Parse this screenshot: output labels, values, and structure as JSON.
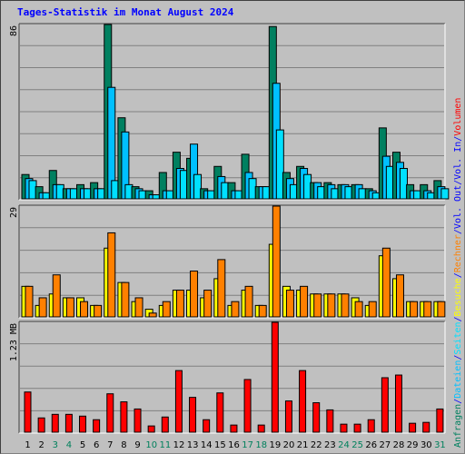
{
  "title": "Tages-Statistik im Monat August 2024",
  "colors": {
    "hits": "#008060",
    "files": "#00c0ff",
    "pages": "#00e0ff",
    "visits": "#ffff00",
    "sites": "#ff8000",
    "kbytes": "#ff0000",
    "weekend": "#00805c",
    "weekday": "#000000"
  },
  "chart_data": [
    {
      "type": "bar",
      "panel": "hits",
      "ymax_label": "86",
      "ylim": [
        0,
        86
      ],
      "categories": [
        "1",
        "2",
        "3",
        "4",
        "5",
        "6",
        "7",
        "8",
        "9",
        "10",
        "11",
        "12",
        "13",
        "14",
        "15",
        "16",
        "17",
        "18",
        "19",
        "20",
        "21",
        "22",
        "23",
        "24",
        "25",
        "26",
        "27",
        "28",
        "29",
        "30",
        "31"
      ],
      "weekend": [
        false,
        false,
        true,
        true,
        false,
        false,
        false,
        false,
        false,
        true,
        true,
        false,
        false,
        false,
        false,
        false,
        true,
        true,
        false,
        false,
        false,
        false,
        false,
        true,
        true,
        false,
        false,
        false,
        false,
        false,
        true
      ],
      "series": [
        {
          "name": "Anfragen",
          "values": [
            12,
            6,
            14,
            5,
            7,
            8,
            86,
            40,
            6,
            4,
            13,
            23,
            20,
            5,
            16,
            8,
            22,
            6,
            85,
            13,
            16,
            8,
            8,
            7,
            7,
            5,
            35,
            23,
            7,
            7,
            9
          ]
        },
        {
          "name": "Dateien",
          "values": [
            10,
            3,
            7,
            5,
            5,
            5,
            55,
            33,
            5,
            2,
            4,
            15,
            27,
            4,
            11,
            4,
            13,
            6,
            57,
            10,
            15,
            8,
            7,
            7,
            7,
            4,
            21,
            18,
            4,
            4,
            6
          ]
        },
        {
          "name": "Seiten",
          "values": [
            9,
            3,
            7,
            5,
            5,
            5,
            9,
            7,
            4,
            2,
            4,
            14,
            12,
            4,
            8,
            4,
            10,
            6,
            34,
            7,
            12,
            6,
            5,
            6,
            5,
            3,
            16,
            15,
            4,
            3,
            5
          ]
        }
      ]
    },
    {
      "type": "bar",
      "panel": "visits",
      "ymax_label": "29",
      "ylim": [
        0,
        29
      ],
      "categories": [
        "1",
        "2",
        "3",
        "4",
        "5",
        "6",
        "7",
        "8",
        "9",
        "10",
        "11",
        "12",
        "13",
        "14",
        "15",
        "16",
        "17",
        "18",
        "19",
        "20",
        "21",
        "22",
        "23",
        "24",
        "25",
        "26",
        "27",
        "28",
        "29",
        "30",
        "31"
      ],
      "series": [
        {
          "name": "Besuche",
          "values": [
            8,
            3,
            6,
            5,
            5,
            3,
            18,
            9,
            4,
            2,
            3,
            7,
            7,
            5,
            10,
            3,
            7,
            3,
            19,
            8,
            7,
            6,
            6,
            6,
            5,
            3,
            16,
            10,
            4,
            4,
            4
          ]
        },
        {
          "name": "Rechner",
          "values": [
            8,
            5,
            11,
            5,
            4,
            3,
            22,
            9,
            5,
            1,
            4,
            7,
            12,
            7,
            15,
            4,
            8,
            3,
            29,
            7,
            8,
            6,
            6,
            6,
            4,
            4,
            18,
            11,
            4,
            4,
            4
          ]
        }
      ]
    },
    {
      "type": "bar",
      "panel": "volume",
      "ymax_label": "1.23 MB",
      "ylim": [
        0,
        1.23
      ],
      "categories": [
        "1",
        "2",
        "3",
        "4",
        "5",
        "6",
        "7",
        "8",
        "9",
        "10",
        "11",
        "12",
        "13",
        "14",
        "15",
        "16",
        "17",
        "18",
        "19",
        "20",
        "21",
        "22",
        "23",
        "24",
        "25",
        "26",
        "27",
        "28",
        "29",
        "30",
        "31"
      ],
      "series": [
        {
          "name": "Volumen",
          "values": [
            0.45,
            0.16,
            0.2,
            0.2,
            0.18,
            0.14,
            0.43,
            0.34,
            0.26,
            0.07,
            0.17,
            0.69,
            0.39,
            0.14,
            0.44,
            0.08,
            0.59,
            0.08,
            1.23,
            0.35,
            0.69,
            0.33,
            0.25,
            0.09,
            0.09,
            0.14,
            0.61,
            0.64,
            0.1,
            0.11,
            0.26
          ]
        }
      ]
    }
  ],
  "right_legend": {
    "top": [
      {
        "text": "Anfragen",
        "color": "#008060"
      },
      {
        "text": "/",
        "color": "#0000ff"
      },
      {
        "text": "Dateien",
        "color": "#00c0ff"
      },
      {
        "text": "/",
        "color": "#0000ff"
      },
      {
        "text": "Seiten",
        "color": "#00e0ff"
      },
      {
        "text": "/",
        "color": "#0000ff"
      },
      {
        "text": "Besuche",
        "color": "#ffff00"
      },
      {
        "text": "/",
        "color": "#0000ff"
      },
      {
        "text": "Rechner",
        "color": "#ff8000"
      },
      {
        "text": "/",
        "color": "#0000ff"
      },
      {
        "text": "Vol. Out",
        "color": "#0000ff"
      },
      {
        "text": "/",
        "color": "#0000ff"
      },
      {
        "text": "Vol. In",
        "color": "#0000ff"
      },
      {
        "text": "/",
        "color": "#0000ff"
      },
      {
        "text": "Volumen",
        "color": "#ff0000"
      }
    ]
  }
}
